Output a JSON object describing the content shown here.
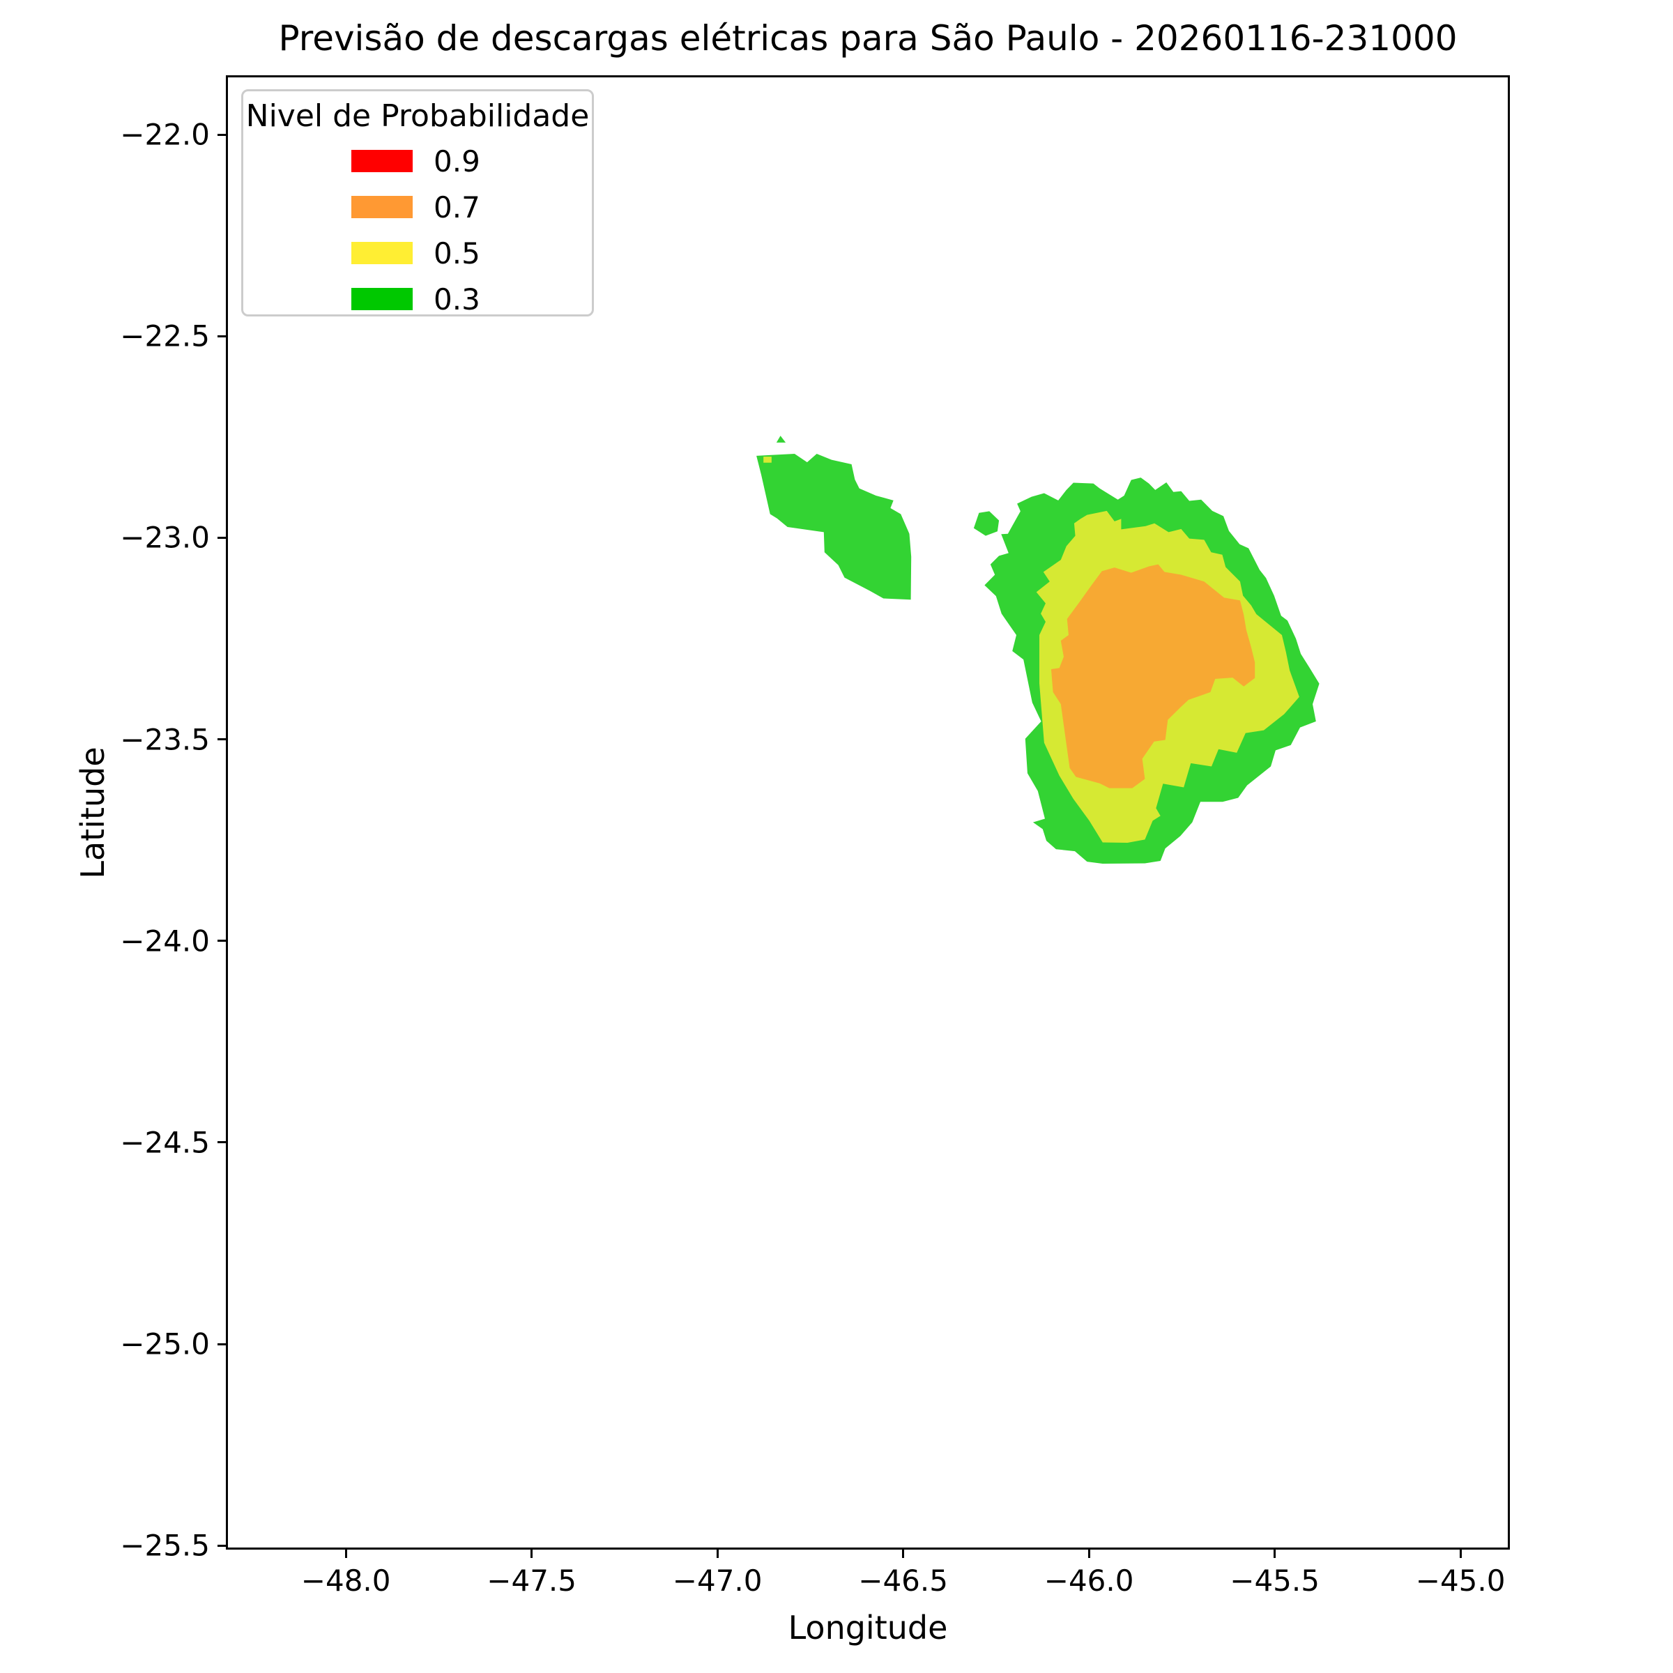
{
  "figure": {
    "title": "Previsão de descargas elétricas para São Paulo - 20260116-231000"
  },
  "axes": {
    "xlabel": "Longitude",
    "ylabel": "Latitude"
  },
  "legend": {
    "title": "Nivel de Probabilidade",
    "items": [
      {
        "label": "0.9",
        "color": "#FF0000"
      },
      {
        "label": "0.7",
        "color": "#FF9933"
      },
      {
        "label": "0.5",
        "color": "#FFEE33"
      },
      {
        "label": "0.3",
        "color": "#00C800"
      }
    ]
  },
  "chart_data": {
    "type": "filled-contour-map",
    "title": "Previsão de descargas elétricas para São Paulo - 20260116-231000",
    "xlabel": "Longitude",
    "ylabel": "Latitude",
    "xlim": [
      -48.323,
      -44.867
    ],
    "ylim": [
      -25.51,
      -21.853
    ],
    "xticks": [
      -48.0,
      -47.5,
      -47.0,
      -46.5,
      -46.0,
      -45.5,
      -45.0
    ],
    "yticks": [
      -22.0,
      -22.5,
      -23.0,
      -23.5,
      -24.0,
      -24.5,
      -25.0,
      -25.5
    ],
    "grid": false,
    "legend_position": "upper left",
    "probability_levels": [
      {
        "level": 0.9,
        "legend_color": "#FF0000"
      },
      {
        "level": 0.7,
        "legend_color": "#FF9933"
      },
      {
        "level": 0.5,
        "legend_color": "#FFEE33"
      },
      {
        "level": 0.3,
        "legend_color": "#00C800"
      }
    ],
    "regions": [
      {
        "name": "main-cell-p03",
        "level": 0.3,
        "fill": "#33D333",
        "points": [
          [
            -46.153,
            -22.896
          ],
          [
            -46.119,
            -22.887
          ],
          [
            -46.081,
            -22.905
          ],
          [
            -46.059,
            -22.879
          ],
          [
            -46.04,
            -22.861
          ],
          [
            -45.986,
            -22.863
          ],
          [
            -45.969,
            -22.875
          ],
          [
            -45.92,
            -22.903
          ],
          [
            -45.903,
            -22.893
          ],
          [
            -45.884,
            -22.854
          ],
          [
            -45.858,
            -22.848
          ],
          [
            -45.836,
            -22.863
          ],
          [
            -45.819,
            -22.879
          ],
          [
            -45.789,
            -22.86
          ],
          [
            -45.77,
            -22.884
          ],
          [
            -45.749,
            -22.882
          ],
          [
            -45.727,
            -22.906
          ],
          [
            -45.695,
            -22.903
          ],
          [
            -45.665,
            -22.931
          ],
          [
            -45.635,
            -22.944
          ],
          [
            -45.62,
            -22.981
          ],
          [
            -45.591,
            -23.014
          ],
          [
            -45.567,
            -23.024
          ],
          [
            -45.537,
            -23.078
          ],
          [
            -45.52,
            -23.098
          ],
          [
            -45.498,
            -23.142
          ],
          [
            -45.479,
            -23.192
          ],
          [
            -45.462,
            -23.204
          ],
          [
            -45.439,
            -23.249
          ],
          [
            -45.426,
            -23.287
          ],
          [
            -45.402,
            -23.322
          ],
          [
            -45.376,
            -23.361
          ],
          [
            -45.394,
            -23.412
          ],
          [
            -45.385,
            -23.455
          ],
          [
            -45.428,
            -23.47
          ],
          [
            -45.453,
            -23.514
          ],
          [
            -45.494,
            -23.527
          ],
          [
            -45.507,
            -23.567
          ],
          [
            -45.571,
            -23.614
          ],
          [
            -45.595,
            -23.645
          ],
          [
            -45.637,
            -23.655
          ],
          [
            -45.697,
            -23.655
          ],
          [
            -45.719,
            -23.706
          ],
          [
            -45.751,
            -23.74
          ],
          [
            -45.792,
            -23.771
          ],
          [
            -45.805,
            -23.802
          ],
          [
            -45.847,
            -23.808
          ],
          [
            -45.961,
            -23.809
          ],
          [
            -46.003,
            -23.804
          ],
          [
            -46.036,
            -23.778
          ],
          [
            -46.087,
            -23.773
          ],
          [
            -46.113,
            -23.752
          ],
          [
            -46.123,
            -23.723
          ],
          [
            -46.149,
            -23.706
          ],
          [
            -46.117,
            -23.697
          ],
          [
            -46.136,
            -23.628
          ],
          [
            -46.164,
            -23.584
          ],
          [
            -46.17,
            -23.498
          ],
          [
            -46.127,
            -23.455
          ],
          [
            -46.151,
            -23.408
          ],
          [
            -46.175,
            -23.301
          ],
          [
            -46.205,
            -23.28
          ],
          [
            -46.194,
            -23.24
          ],
          [
            -46.234,
            -23.187
          ],
          [
            -46.249,
            -23.143
          ],
          [
            -46.28,
            -23.116
          ],
          [
            -46.252,
            -23.09
          ],
          [
            -46.264,
            -23.064
          ],
          [
            -46.241,
            -23.043
          ],
          [
            -46.215,
            -23.036
          ],
          [
            -46.235,
            -22.989
          ],
          [
            -46.217,
            -22.988
          ],
          [
            -46.183,
            -22.932
          ],
          [
            -46.192,
            -22.913
          ]
        ]
      },
      {
        "name": "main-cell-p05",
        "level": 0.5,
        "fill": "#D6E933",
        "points": [
          [
            -46.021,
            -22.951
          ],
          [
            -46.003,
            -22.941
          ],
          [
            -45.95,
            -22.931
          ],
          [
            -45.929,
            -22.957
          ],
          [
            -45.911,
            -22.951
          ],
          [
            -45.911,
            -22.977
          ],
          [
            -45.845,
            -22.969
          ],
          [
            -45.821,
            -22.962
          ],
          [
            -45.783,
            -22.984
          ],
          [
            -45.749,
            -22.976
          ],
          [
            -45.727,
            -23.0
          ],
          [
            -45.687,
            -23.003
          ],
          [
            -45.668,
            -23.034
          ],
          [
            -45.638,
            -23.04
          ],
          [
            -45.629,
            -23.071
          ],
          [
            -45.59,
            -23.107
          ],
          [
            -45.582,
            -23.142
          ],
          [
            -45.56,
            -23.166
          ],
          [
            -45.546,
            -23.188
          ],
          [
            -45.477,
            -23.24
          ],
          [
            -45.466,
            -23.282
          ],
          [
            -45.456,
            -23.328
          ],
          [
            -45.43,
            -23.394
          ],
          [
            -45.471,
            -23.437
          ],
          [
            -45.526,
            -23.477
          ],
          [
            -45.575,
            -23.484
          ],
          [
            -45.599,
            -23.533
          ],
          [
            -45.648,
            -23.524
          ],
          [
            -45.667,
            -23.567
          ],
          [
            -45.723,
            -23.559
          ],
          [
            -45.742,
            -23.619
          ],
          [
            -45.798,
            -23.61
          ],
          [
            -45.817,
            -23.671
          ],
          [
            -45.805,
            -23.69
          ],
          [
            -45.826,
            -23.702
          ],
          [
            -45.847,
            -23.749
          ],
          [
            -45.894,
            -23.757
          ],
          [
            -45.961,
            -23.756
          ],
          [
            -45.997,
            -23.702
          ],
          [
            -46.04,
            -23.648
          ],
          [
            -46.078,
            -23.59
          ],
          [
            -46.119,
            -23.508
          ],
          [
            -46.132,
            -23.36
          ],
          [
            -46.132,
            -23.24
          ],
          [
            -46.115,
            -23.207
          ],
          [
            -46.128,
            -23.187
          ],
          [
            -46.115,
            -23.161
          ],
          [
            -46.14,
            -23.133
          ],
          [
            -46.104,
            -23.107
          ],
          [
            -46.121,
            -23.083
          ],
          [
            -46.074,
            -23.053
          ],
          [
            -46.059,
            -23.019
          ],
          [
            -46.035,
            -22.993
          ],
          [
            -46.038,
            -22.962
          ]
        ]
      },
      {
        "name": "main-cell-p07",
        "level": 0.7,
        "fill": "#F7A933",
        "points": [
          [
            -45.963,
            -23.081
          ],
          [
            -45.929,
            -23.072
          ],
          [
            -45.884,
            -23.085
          ],
          [
            -45.836,
            -23.069
          ],
          [
            -45.811,
            -23.064
          ],
          [
            -45.794,
            -23.083
          ],
          [
            -45.749,
            -23.09
          ],
          [
            -45.687,
            -23.107
          ],
          [
            -45.633,
            -23.147
          ],
          [
            -45.59,
            -23.154
          ],
          [
            -45.58,
            -23.19
          ],
          [
            -45.573,
            -23.228
          ],
          [
            -45.56,
            -23.27
          ],
          [
            -45.55,
            -23.308
          ],
          [
            -45.55,
            -23.347
          ],
          [
            -45.58,
            -23.368
          ],
          [
            -45.61,
            -23.346
          ],
          [
            -45.657,
            -23.349
          ],
          [
            -45.67,
            -23.382
          ],
          [
            -45.691,
            -23.389
          ],
          [
            -45.729,
            -23.401
          ],
          [
            -45.751,
            -23.42
          ],
          [
            -45.785,
            -23.451
          ],
          [
            -45.792,
            -23.501
          ],
          [
            -45.822,
            -23.505
          ],
          [
            -45.854,
            -23.548
          ],
          [
            -45.847,
            -23.598
          ],
          [
            -45.881,
            -23.621
          ],
          [
            -45.943,
            -23.621
          ],
          [
            -45.969,
            -23.609
          ],
          [
            -46.033,
            -23.593
          ],
          [
            -46.05,
            -23.571
          ],
          [
            -46.074,
            -23.412
          ],
          [
            -46.095,
            -23.382
          ],
          [
            -46.1,
            -23.325
          ],
          [
            -46.078,
            -23.322
          ],
          [
            -46.066,
            -23.294
          ],
          [
            -46.074,
            -23.254
          ],
          [
            -46.053,
            -23.24
          ],
          [
            -46.057,
            -23.2
          ],
          [
            -46.023,
            -23.157
          ],
          [
            -45.995,
            -23.121
          ]
        ]
      },
      {
        "name": "main-cell-west-fragment-p03",
        "level": 0.3,
        "fill": "#33D333",
        "points": [
          [
            -46.309,
            -22.974
          ],
          [
            -46.295,
            -22.936
          ],
          [
            -46.267,
            -22.932
          ],
          [
            -46.241,
            -22.955
          ],
          [
            -46.245,
            -22.982
          ],
          [
            -46.277,
            -22.993
          ]
        ]
      },
      {
        "name": "west-cell-p03",
        "level": 0.3,
        "fill": "#33D333",
        "points": [
          [
            -46.896,
            -22.794
          ],
          [
            -46.793,
            -22.789
          ],
          [
            -46.759,
            -22.81
          ],
          [
            -46.733,
            -22.789
          ],
          [
            -46.693,
            -22.804
          ],
          [
            -46.639,
            -22.815
          ],
          [
            -46.63,
            -22.853
          ],
          [
            -46.618,
            -22.875
          ],
          [
            -46.573,
            -22.893
          ],
          [
            -46.526,
            -22.905
          ],
          [
            -46.534,
            -22.924
          ],
          [
            -46.506,
            -22.939
          ],
          [
            -46.483,
            -22.988
          ],
          [
            -46.478,
            -23.045
          ],
          [
            -46.479,
            -23.152
          ],
          [
            -46.553,
            -23.149
          ],
          [
            -46.59,
            -23.13
          ],
          [
            -46.658,
            -23.097
          ],
          [
            -46.675,
            -23.066
          ],
          [
            -46.712,
            -23.034
          ],
          [
            -46.714,
            -22.984
          ],
          [
            -46.812,
            -22.971
          ],
          [
            -46.84,
            -22.95
          ],
          [
            -46.859,
            -22.939
          ],
          [
            -46.883,
            -22.841
          ]
        ]
      },
      {
        "name": "west-cell-p05-patch",
        "level": 0.5,
        "fill": "#D6E933",
        "points": [
          [
            -46.877,
            -22.796
          ],
          [
            -46.855,
            -22.796
          ],
          [
            -46.855,
            -22.811
          ],
          [
            -46.877,
            -22.811
          ]
        ]
      },
      {
        "name": "west-cell-fragment-p03",
        "level": 0.3,
        "fill": "#33D333",
        "points": [
          [
            -46.831,
            -22.744
          ],
          [
            -46.817,
            -22.761
          ],
          [
            -46.842,
            -22.761
          ]
        ]
      }
    ]
  }
}
